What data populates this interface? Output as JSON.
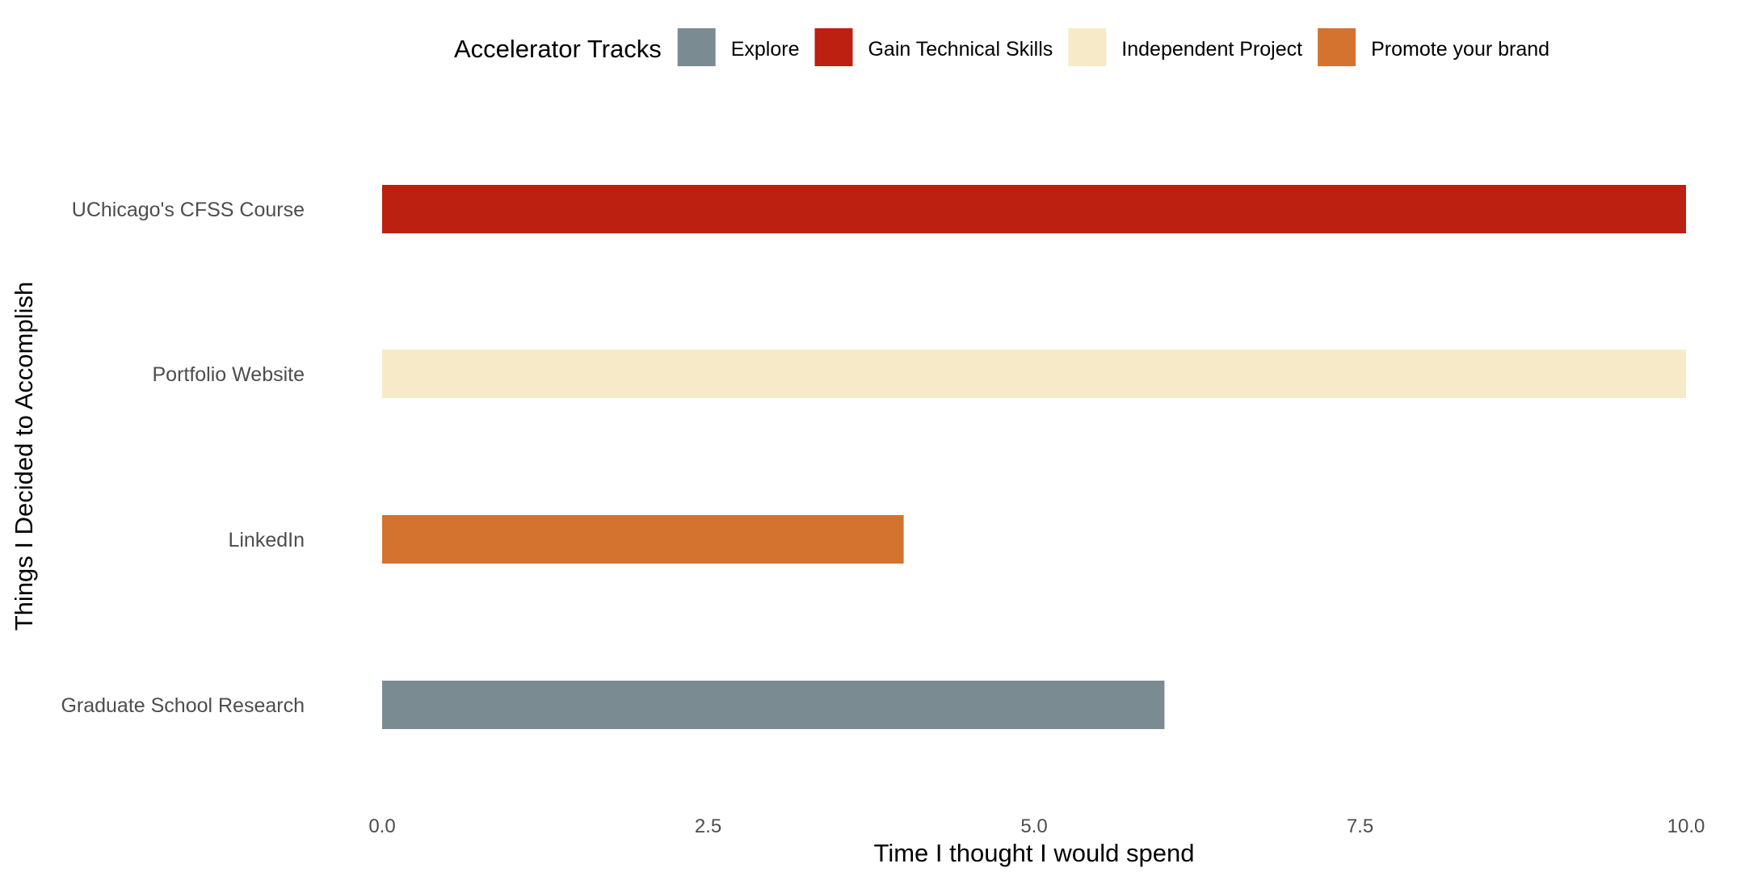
{
  "chart_data": {
    "type": "bar",
    "orientation": "horizontal",
    "categories": [
      "UChicago's CFSS Course",
      "Portfolio Website",
      "LinkedIn",
      "Graduate School Research"
    ],
    "values": [
      10.0,
      10.0,
      4.0,
      6.0
    ],
    "groups": [
      "Gain Technical Skills",
      "Independent Project",
      "Promote your brand",
      "Explore"
    ],
    "xlabel": "Time I thought I would spend",
    "ylabel": "Things I Decided to Accomplish",
    "xlim": [
      0,
      10
    ],
    "xticks": [
      0,
      2.5,
      5,
      7.5,
      10
    ],
    "xtick_labels": [
      "0.0",
      "2.5",
      "5.0",
      "7.5",
      "10.0"
    ],
    "grid": false,
    "legend": {
      "title": "Accelerator Tracks",
      "position": "top",
      "items": [
        {
          "label": "Explore",
          "color": "#7a8c92"
        },
        {
          "label": "Gain Technical Skills",
          "color": "#bc2010"
        },
        {
          "label": "Independent Project",
          "color": "#f7eac8"
        },
        {
          "label": "Promote your brand",
          "color": "#d47230"
        }
      ]
    }
  }
}
